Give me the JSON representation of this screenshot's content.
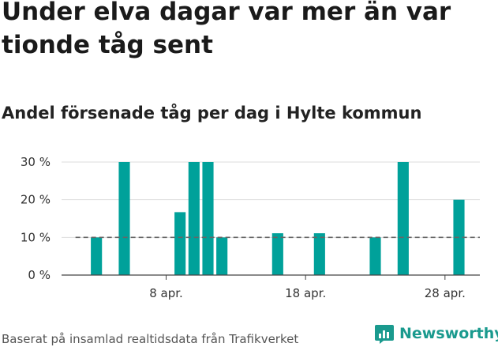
{
  "headline": "Under elva dagar var mer än var tionde tåg sent",
  "subtitle": "Andel försenade tåg per dag i Hylte kommun",
  "footer": "Baserat på insamlad realtidsdata från Trafikverket",
  "brand": "Newsworthy",
  "colors": {
    "bar": "#00a19a",
    "reference": "#666666",
    "grid": "#dddddd",
    "brand": "#1a9a8e"
  },
  "chart_data": {
    "type": "bar",
    "x_axis": {
      "range_days_april": [
        0.5,
        30.5
      ],
      "tick_days": [
        8,
        18,
        28
      ],
      "tick_labels": [
        "8 apr.",
        "18 apr.",
        "28 apr."
      ]
    },
    "y_axis": {
      "range": [
        0,
        30
      ],
      "ticks": [
        0,
        10,
        20,
        30
      ],
      "tick_labels": [
        "0 %",
        "10 %",
        "20 %",
        "30 %"
      ]
    },
    "reference_line": {
      "value": 10,
      "style": "dashed",
      "from_day": 2,
      "to_day": 30
    },
    "series": [
      {
        "dates": [
          "3 apr.",
          "5 apr.",
          "9 apr.",
          "10 apr.",
          "11 apr.",
          "12 apr.",
          "16 apr.",
          "19 apr.",
          "23 apr.",
          "25 apr.",
          "29 apr."
        ],
        "days": [
          3,
          5,
          9,
          10,
          11,
          12,
          16,
          19,
          23,
          25,
          29
        ],
        "values": [
          10,
          30,
          16.7,
          30,
          30,
          10,
          11.1,
          11.1,
          10,
          30,
          20
        ]
      }
    ],
    "grid": true,
    "legend": "none"
  }
}
